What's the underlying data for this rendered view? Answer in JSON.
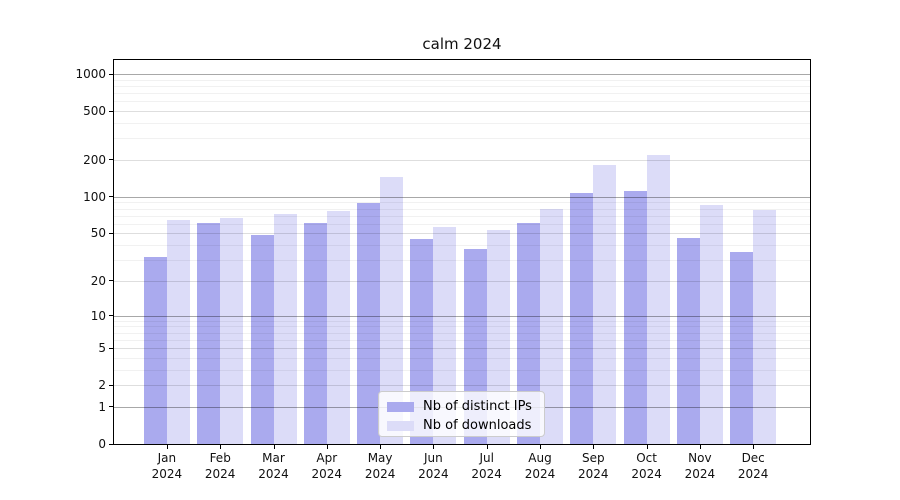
{
  "title": "calm 2024",
  "chart_data": {
    "type": "bar",
    "title": "calm 2024",
    "categories": [
      "Jan 2024",
      "Feb 2024",
      "Mar 2024",
      "Apr 2024",
      "May 2024",
      "Jun 2024",
      "Jul 2024",
      "Aug 2024",
      "Sep 2024",
      "Oct 2024",
      "Nov 2024",
      "Dec 2024"
    ],
    "series": [
      {
        "name": "Nb of distinct IPs",
        "color": "#aaaaee",
        "values": [
          32,
          61,
          49,
          61,
          89,
          45,
          37,
          61,
          108,
          112,
          46,
          35
        ]
      },
      {
        "name": "Nb of downloads",
        "color": "#dcdcf8",
        "values": [
          64,
          67,
          72,
          77,
          145,
          56,
          53,
          80,
          183,
          218,
          85,
          78
        ]
      }
    ],
    "xlabel": "",
    "ylabel": "",
    "y_scale": "log1p",
    "y_ticks": [
      0,
      1,
      2,
      5,
      10,
      20,
      50,
      100,
      200,
      500,
      1000
    ],
    "ylim": [
      0,
      1300
    ],
    "grid": "both",
    "legend_position": "lower center inside plot",
    "colors": {
      "background": "#ffffff",
      "axis": "#000000",
      "major_grid": "rgba(0,0,0,0.34)",
      "mid_grid": "rgba(0,0,0,0.13)",
      "minor_grid": "rgba(0,0,0,0.055)"
    }
  }
}
